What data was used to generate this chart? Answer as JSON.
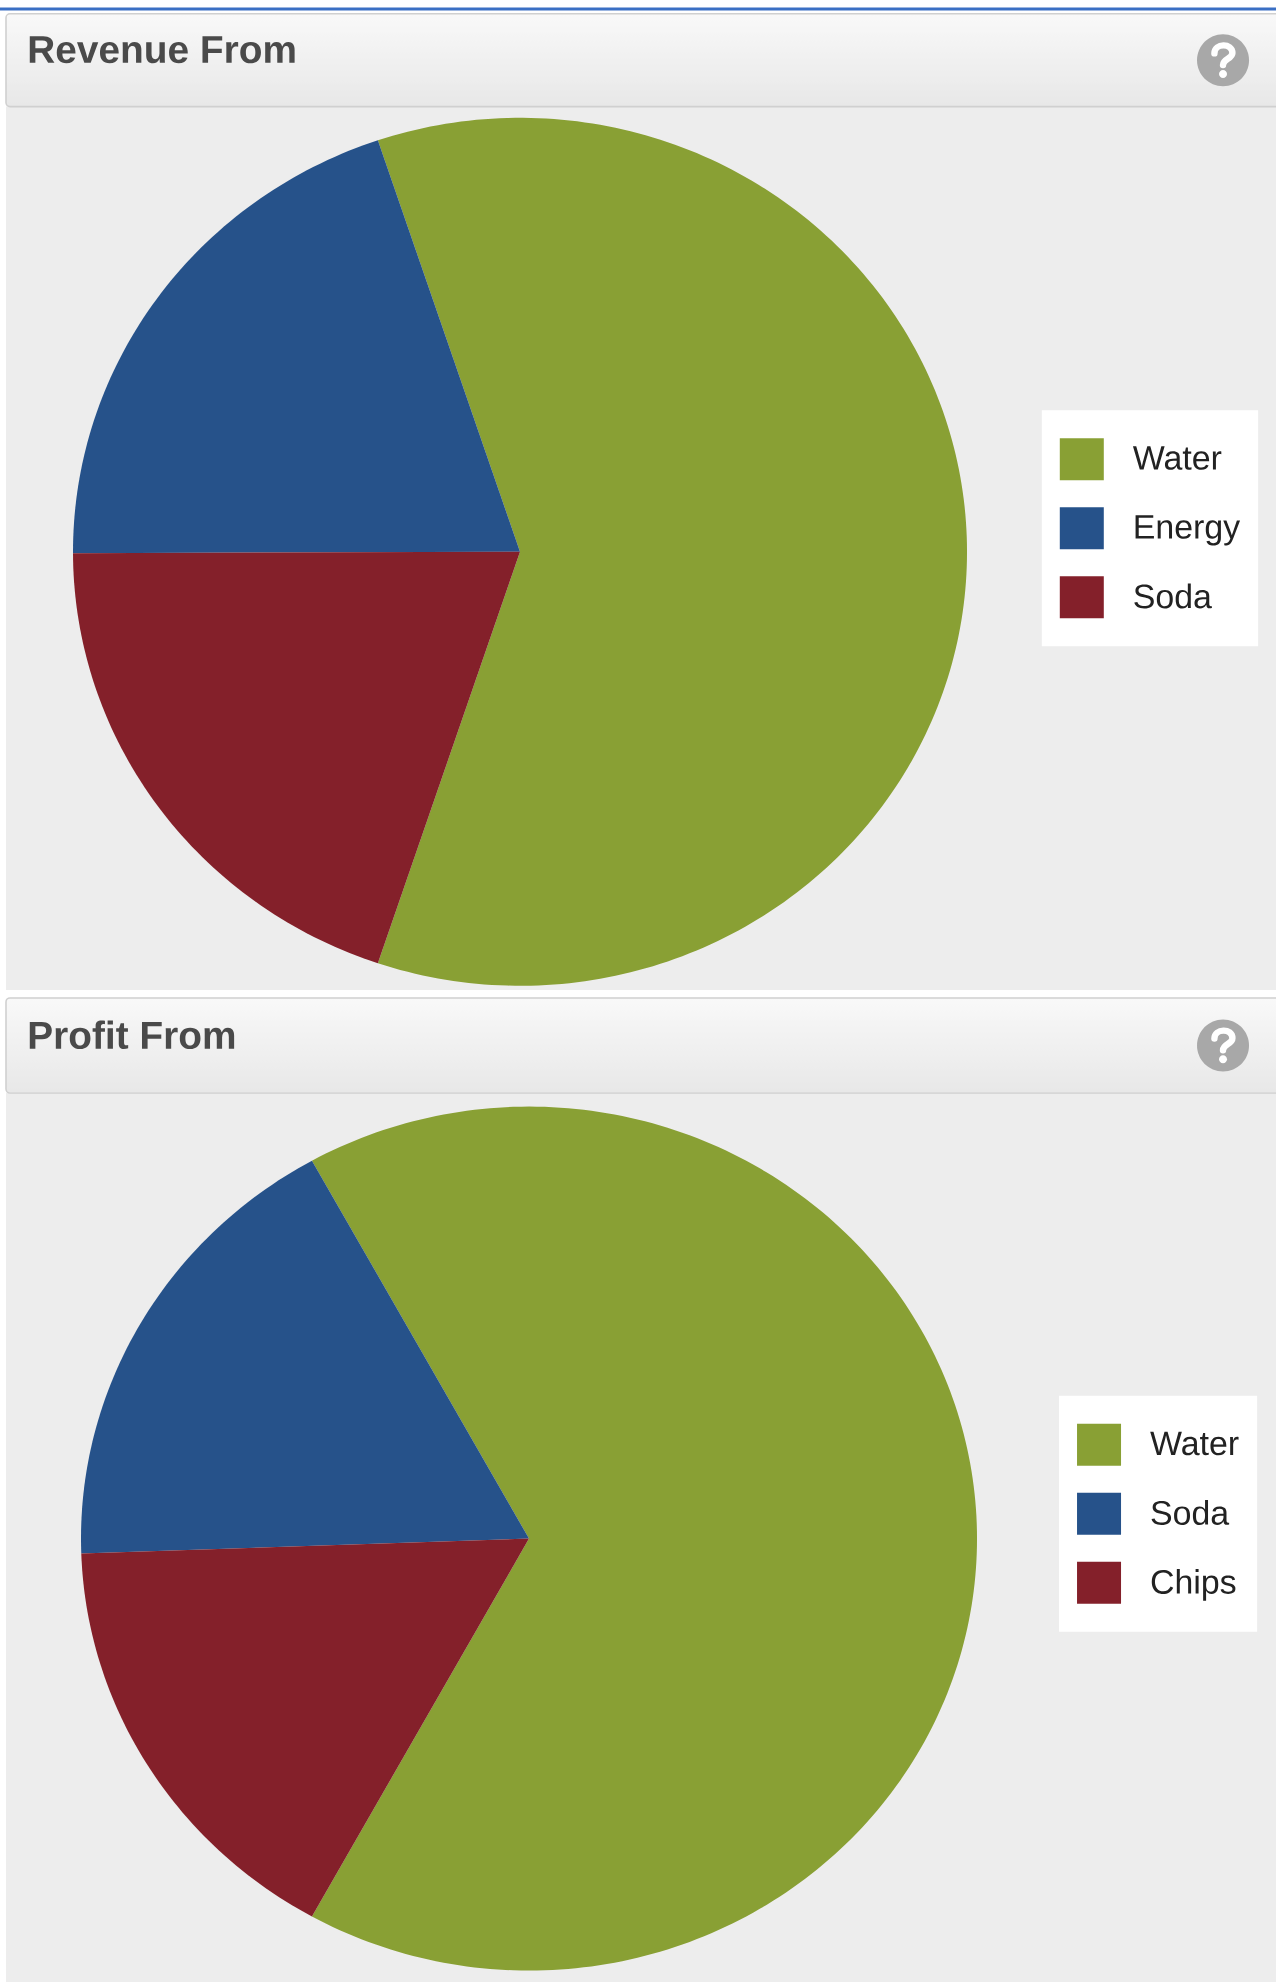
{
  "chart_data": [
    {
      "type": "pie",
      "title": "Revenue From",
      "categories": [
        "Water",
        "Energy",
        "Soda"
      ],
      "values": [
        60.3,
        19.9,
        19.8
      ],
      "colors": [
        "#89a034",
        "#26528a",
        "#84202a"
      ],
      "legend": "right"
    },
    {
      "type": "pie",
      "title": "Profit From",
      "categories": [
        "Water",
        "Soda",
        "Chips"
      ],
      "values": [
        66.1,
        17.5,
        16.4
      ],
      "colors": [
        "#89a034",
        "#26528a",
        "#84202a"
      ],
      "legend": "right"
    }
  ]
}
